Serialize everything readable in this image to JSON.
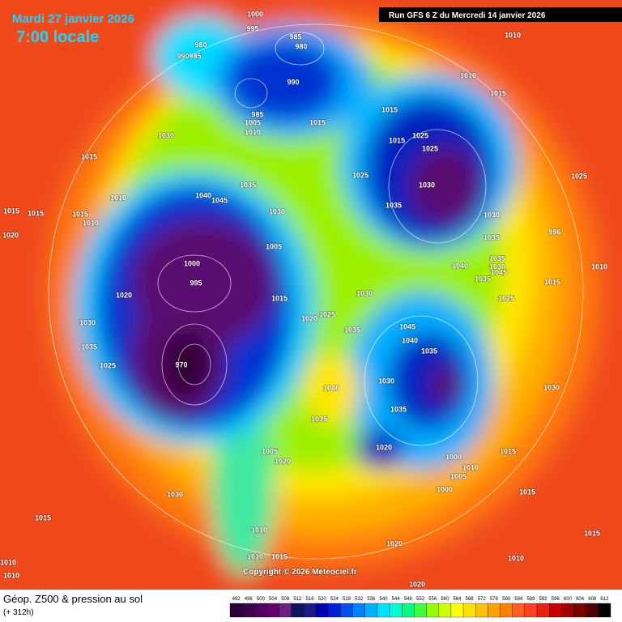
{
  "header": {
    "date": "Mardi 27 janvier 2026",
    "time": "7:00 locale",
    "run": "Run GFS 6 Z du Mercredi 14 janvier 2026"
  },
  "footer": {
    "title": "Géop. Z500 & pression au sol",
    "subtitle": "(+ 312h)",
    "copyright": "Copyright © 2026 Meteociel.fr"
  },
  "scale": {
    "values": [
      492,
      496,
      500,
      504,
      508,
      512,
      516,
      520,
      524,
      528,
      532,
      536,
      540,
      544,
      548,
      552,
      556,
      560,
      564,
      568,
      572,
      576,
      580,
      584,
      588,
      592,
      596,
      600,
      604,
      608,
      612
    ],
    "colors": [
      "#2a0030",
      "#3c0050",
      "#500060",
      "#640070",
      "#6e2080",
      "#101060",
      "#1a1a8a",
      "#0000b0",
      "#0020d8",
      "#0050f0",
      "#0080ff",
      "#00b0ff",
      "#00e0ff",
      "#00ffd0",
      "#00ff80",
      "#40ff40",
      "#90ff00",
      "#d0ff00",
      "#ffff00",
      "#ffe000",
      "#ffc000",
      "#ffa000",
      "#ff8000",
      "#ff6020",
      "#ff4020",
      "#e82010",
      "#c80000",
      "#a00000",
      "#780000",
      "#500000",
      "#000000"
    ]
  },
  "isobar_labels": [
    "1000",
    "995",
    "985",
    "980",
    "980",
    "990",
    "985",
    "1010",
    "1010",
    "1015",
    "990",
    "985",
    "1005",
    "1010",
    "1015",
    "1015",
    "1015",
    "1025",
    "1025",
    "1030",
    "1015",
    "1025",
    "1025",
    "1030",
    "1035",
    "1040",
    "1045",
    "1010",
    "1015",
    "1015",
    "1015",
    "1010",
    "1035",
    "1030",
    "1030",
    "996",
    "1020",
    "1035",
    "1005",
    "1000",
    "995",
    "1040",
    "1035",
    "1030",
    "1045",
    "1035",
    "1015",
    "1020",
    "1015",
    "1030",
    "1025",
    "1025",
    "1020",
    "1030",
    "1035",
    "1045",
    "1040",
    "1035",
    "1035",
    "1025",
    "970",
    "1030",
    "1040",
    "1030",
    "1035",
    "1035",
    "1020",
    "1005",
    "1020",
    "1015",
    "1000",
    "1010",
    "1005",
    "1000",
    "1015",
    "1030",
    "1015",
    "1010",
    "1015",
    "1020",
    "1010",
    "1010",
    "1015",
    "1010",
    "1010",
    "1020",
    "1010"
  ]
}
